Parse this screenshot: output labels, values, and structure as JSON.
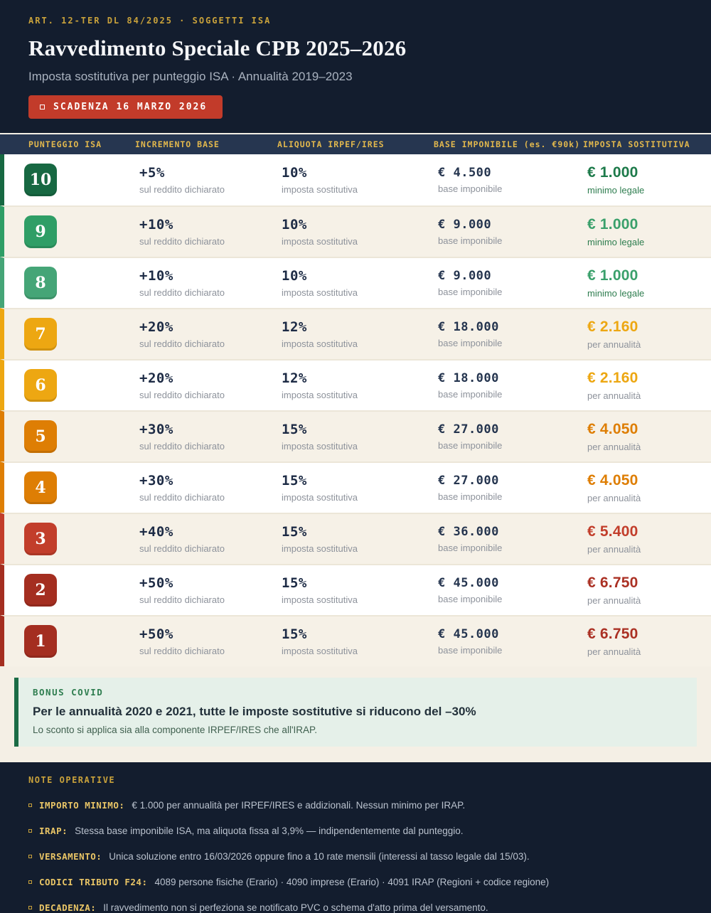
{
  "colors": {
    "accent_gold": "#c9a33a",
    "header_navy": "#131d2e",
    "table_header_navy": "#263650",
    "deadline_red": "#c23b2a",
    "page_beige": "#f4efe5",
    "row_tint": "#f6f1e7",
    "bonus_mint": "#e5f0e9",
    "bonus_green": "#1b6b45"
  },
  "header": {
    "eyebrow": "ART. 12-TER DL 84/2025  ·  SOGGETTI ISA",
    "title": "Ravvedimento Speciale CPB 2025–2026",
    "subtitle": "Imposta sostitutiva per punteggio ISA  ·  Annualità 2019–2023",
    "deadline_badge": "SCADENZA 16 MARZO 2026"
  },
  "table": {
    "columns": [
      "PUNTEGGIO ISA",
      "INCREMENTO BASE",
      "ALIQUOTA IRPEF/IRES",
      "BASE IMPONIBILE (es. €90k)",
      "IMPOSTA SOSTITUTIVA"
    ],
    "rows": [
      {
        "score": "10",
        "increment": "+5%",
        "increment_sub": "sul reddito dichiarato",
        "rate": "10%",
        "rate_sub": "imposta sostitutiva",
        "base": "€ 4.500",
        "base_sub": "base imponibile",
        "tax": "€ 1.000",
        "tax_sub": "minimo legale",
        "badge_color": "#176842",
        "tax_color": "#1d7a4a",
        "tax_sub_color": "#2e7d4f",
        "bg": "#ffffff"
      },
      {
        "score": "9",
        "increment": "+10%",
        "increment_sub": "sul reddito dichiarato",
        "rate": "10%",
        "rate_sub": "imposta sostitutiva",
        "base": "€ 9.000",
        "base_sub": "base imponibile",
        "tax": "€ 1.000",
        "tax_sub": "minimo legale",
        "badge_color": "#2f9e66",
        "tax_color": "#3aa06b",
        "tax_sub_color": "#2e7d4f",
        "bg": "#f6f1e7"
      },
      {
        "score": "8",
        "increment": "+10%",
        "increment_sub": "sul reddito dichiarato",
        "rate": "10%",
        "rate_sub": "imposta sostitutiva",
        "base": "€ 9.000",
        "base_sub": "base imponibile",
        "tax": "€ 1.000",
        "tax_sub": "minimo legale",
        "badge_color": "#45a577",
        "tax_color": "#3aa06b",
        "tax_sub_color": "#2e7d4f",
        "bg": "#ffffff"
      },
      {
        "score": "7",
        "increment": "+20%",
        "increment_sub": "sul reddito dichiarato",
        "rate": "12%",
        "rate_sub": "imposta sostitutiva",
        "base": "€ 18.000",
        "base_sub": "base imponibile",
        "tax": "€ 2.160",
        "tax_sub": "per annualità",
        "badge_color": "#eda712",
        "tax_color": "#eda712",
        "tax_sub_color": "#8d929b",
        "bg": "#f6f1e7"
      },
      {
        "score": "6",
        "increment": "+20%",
        "increment_sub": "sul reddito dichiarato",
        "rate": "12%",
        "rate_sub": "imposta sostitutiva",
        "base": "€ 18.000",
        "base_sub": "base imponibile",
        "tax": "€ 2.160",
        "tax_sub": "per annualità",
        "badge_color": "#eda712",
        "tax_color": "#eda712",
        "tax_sub_color": "#8d929b",
        "bg": "#ffffff"
      },
      {
        "score": "5",
        "increment": "+30%",
        "increment_sub": "sul reddito dichiarato",
        "rate": "15%",
        "rate_sub": "imposta sostitutiva",
        "base": "€ 27.000",
        "base_sub": "base imponibile",
        "tax": "€ 4.050",
        "tax_sub": "per annualità",
        "badge_color": "#de7e04",
        "tax_color": "#de7e04",
        "tax_sub_color": "#8d929b",
        "bg": "#f6f1e7"
      },
      {
        "score": "4",
        "increment": "+30%",
        "increment_sub": "sul reddito dichiarato",
        "rate": "15%",
        "rate_sub": "imposta sostitutiva",
        "base": "€ 27.000",
        "base_sub": "base imponibile",
        "tax": "€ 4.050",
        "tax_sub": "per annualità",
        "badge_color": "#de7e04",
        "tax_color": "#de7e04",
        "tax_sub_color": "#8d929b",
        "bg": "#ffffff"
      },
      {
        "score": "3",
        "increment": "+40%",
        "increment_sub": "sul reddito dichiarato",
        "rate": "15%",
        "rate_sub": "imposta sostitutiva",
        "base": "€ 36.000",
        "base_sub": "base imponibile",
        "tax": "€ 5.400",
        "tax_sub": "per annualità",
        "badge_color": "#c23e2b",
        "tax_color": "#c23e2b",
        "tax_sub_color": "#8d929b",
        "bg": "#f6f1e7"
      },
      {
        "score": "2",
        "increment": "+50%",
        "increment_sub": "sul reddito dichiarato",
        "rate": "15%",
        "rate_sub": "imposta sostitutiva",
        "base": "€ 45.000",
        "base_sub": "base imponibile",
        "tax": "€ 6.750",
        "tax_sub": "per annualità",
        "badge_color": "#a42e20",
        "tax_color": "#ab3124",
        "tax_sub_color": "#8d929b",
        "bg": "#ffffff"
      },
      {
        "score": "1",
        "increment": "+50%",
        "increment_sub": "sul reddito dichiarato",
        "rate": "15%",
        "rate_sub": "imposta sostitutiva",
        "base": "€ 45.000",
        "base_sub": "base imponibile",
        "tax": "€ 6.750",
        "tax_sub": "per annualità",
        "badge_color": "#a42e20",
        "tax_color": "#ab3124",
        "tax_sub_color": "#8d929b",
        "bg": "#f6f1e7"
      }
    ]
  },
  "bonus": {
    "label": "BONUS COVID",
    "headline": "Per le annualità 2020 e 2021, tutte le imposte sostitutive si riducono del  –30%",
    "sub": "Lo sconto si applica sia alla componente IRPEF/IRES che all'IRAP."
  },
  "footer": {
    "heading": "NOTE OPERATIVE",
    "items": [
      {
        "label": "IMPORTO MINIMO:",
        "text": "€ 1.000 per annualità per IRPEF/IRES e addizionali. Nessun minimo per IRAP."
      },
      {
        "label": "IRAP:",
        "text": "Stessa base imponibile ISA, ma aliquota fissa al 3,9% — indipendentemente dal punteggio."
      },
      {
        "label": "VERSAMENTO:",
        "text": "Unica soluzione entro 16/03/2026 oppure fino a 10 rate mensili (interessi al tasso legale dal 15/03)."
      },
      {
        "label": "CODICI TRIBUTO F24:",
        "text": "4089 persone fisiche (Erario)  ·  4090 imprese (Erario)  ·  4091 IRAP (Regioni + codice regione)"
      },
      {
        "label": "DECADENZA:",
        "text": "Il ravvedimento non si perfeziona se notificato PVC o schema d'atto prima del versamento."
      }
    ]
  }
}
